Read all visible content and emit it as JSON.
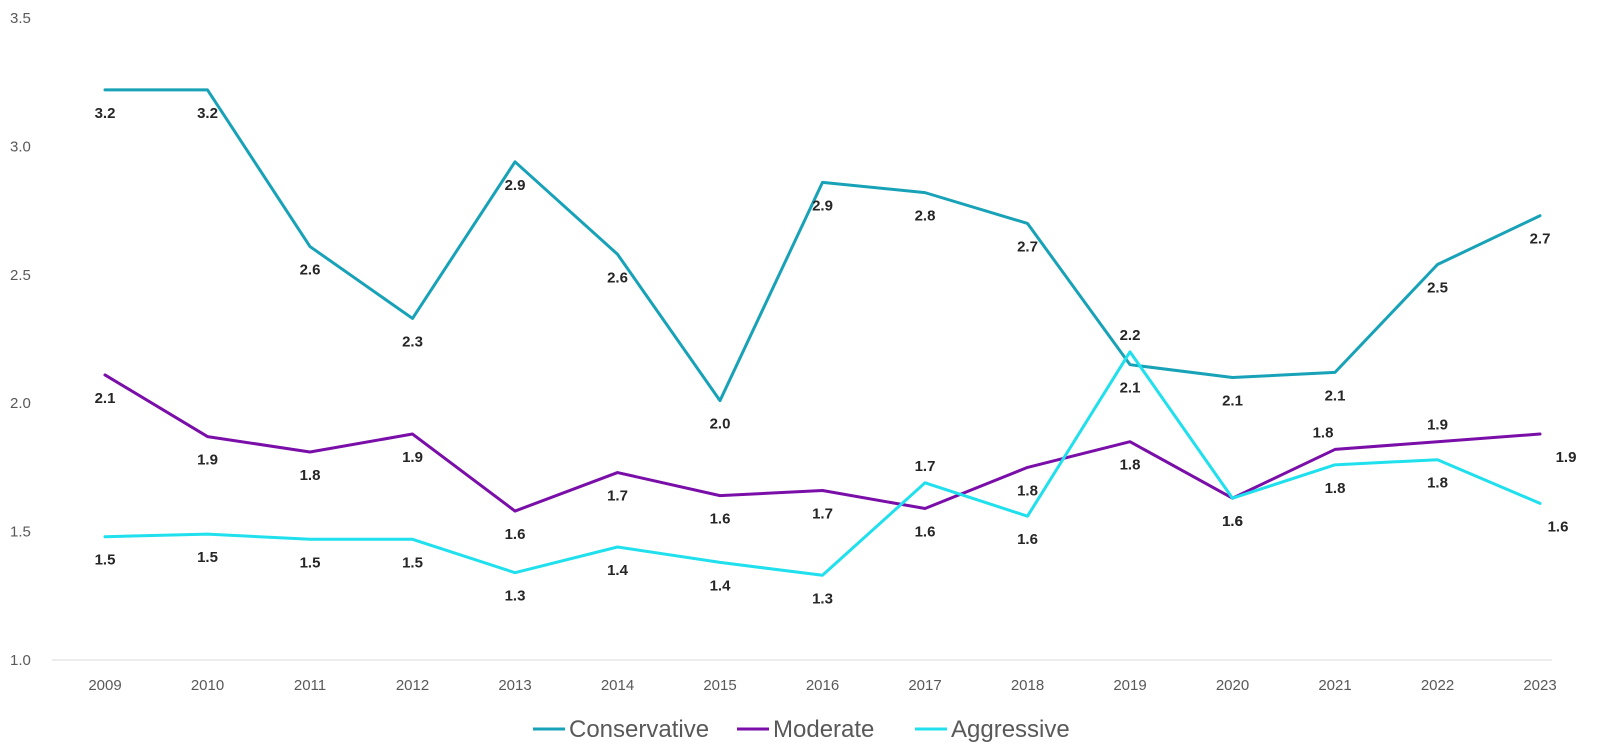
{
  "chart_data": {
    "type": "line",
    "title": "",
    "xlabel": "",
    "ylabel": "",
    "ylim": [
      1.0,
      3.5
    ],
    "yticks": [
      "1.0",
      "1.5",
      "2.0",
      "2.5",
      "3.0",
      "3.5"
    ],
    "grid": false,
    "legend_position": "bottom",
    "categories": [
      "2009",
      "2010",
      "2011",
      "2012",
      "2013",
      "2014",
      "2015",
      "2016",
      "2017",
      "2018",
      "2019",
      "2020",
      "2021",
      "2022",
      "2023"
    ],
    "series": [
      {
        "name": "Conservative",
        "color": "#17A2B8",
        "values": [
          3.22,
          3.22,
          2.61,
          2.33,
          2.94,
          2.58,
          2.01,
          2.86,
          2.82,
          2.7,
          2.15,
          2.1,
          2.12,
          2.54,
          2.73
        ],
        "labels": [
          "3.2",
          "3.2",
          "2.6",
          "2.3",
          "2.9",
          "2.6",
          "2.0",
          "2.9",
          "2.8",
          "2.7",
          "2.1",
          "2.1",
          "2.1",
          "2.5",
          "2.7"
        ]
      },
      {
        "name": "Moderate",
        "color": "#7A0EA8",
        "values": [
          2.11,
          1.87,
          1.81,
          1.88,
          1.58,
          1.73,
          1.64,
          1.66,
          1.59,
          1.75,
          1.85,
          1.63,
          1.82,
          1.85,
          1.88
        ],
        "labels": [
          "2.1",
          "1.9",
          "1.8",
          "1.9",
          "1.6",
          "1.7",
          "1.6",
          "1.7",
          "1.6",
          "1.8",
          "1.8",
          "1.6",
          "1.8",
          "1.9",
          "1.9"
        ]
      },
      {
        "name": "Aggressive",
        "color": "#1FE0EC",
        "values": [
          1.48,
          1.49,
          1.47,
          1.47,
          1.34,
          1.44,
          1.38,
          1.33,
          1.69,
          1.56,
          2.2,
          1.63,
          1.76,
          1.78,
          1.61
        ],
        "labels": [
          "1.5",
          "1.5",
          "1.5",
          "1.5",
          "1.3",
          "1.4",
          "1.4",
          "1.3",
          "1.7",
          "1.6",
          "2.2",
          "1.6",
          "1.8",
          "1.8",
          "1.6"
        ]
      }
    ]
  }
}
